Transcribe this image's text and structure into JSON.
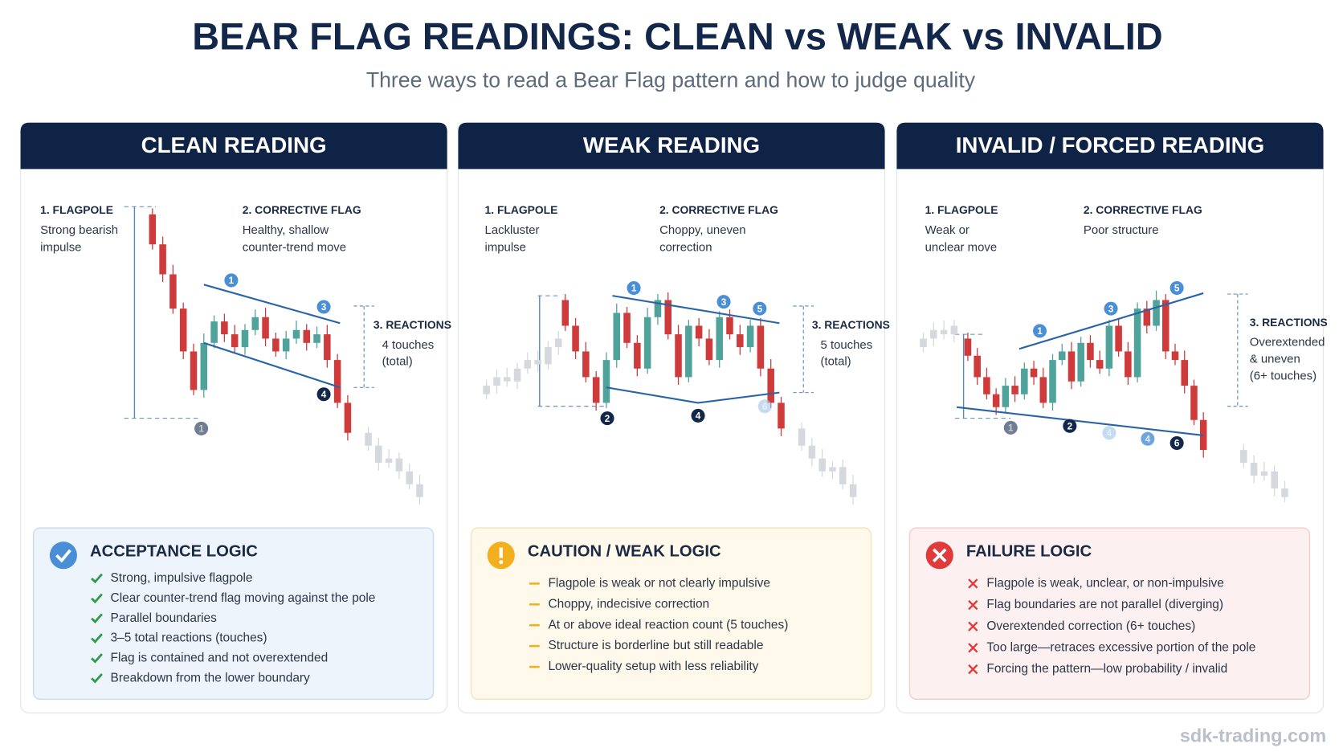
{
  "header": {
    "title": "BEAR FLAG READINGS: CLEAN vs WEAK vs INVALID",
    "subtitle": "Three ways to read a Bear Flag pattern and how to judge quality"
  },
  "panels": [
    {
      "heading": "CLEAN READING",
      "flagpole": {
        "label": "1. FLAGPOLE",
        "lines": [
          "Strong bearish",
          "impulse"
        ]
      },
      "flag": {
        "label": "2. CORRECTIVE FLAG",
        "lines": [
          "Healthy, shallow",
          "counter-trend move"
        ]
      },
      "reactions": {
        "label": "3. REACTIONS",
        "lines": [
          "4 touches",
          "(total)"
        ]
      },
      "markers": [
        "1",
        "3",
        "4",
        "1"
      ],
      "logic": {
        "title": "ACCEPTANCE LOGIC",
        "items": [
          "Strong, impulsive flagpole",
          "Clear counter-trend flag moving against the pole",
          "Parallel boundaries",
          "3–5 total reactions (touches)",
          "Flag is contained and not overextended",
          "Breakdown from the lower boundary"
        ]
      }
    },
    {
      "heading": "WEAK READING",
      "flagpole": {
        "label": "1. FLAGPOLE",
        "lines": [
          "Lackluster",
          "impulse"
        ]
      },
      "flag": {
        "label": "2. CORRECTIVE FLAG",
        "lines": [
          "Choppy, uneven",
          "correction"
        ]
      },
      "reactions": {
        "label": "3. REACTIONS",
        "lines": [
          "5 touches",
          "(total)"
        ]
      },
      "markers": [
        "1",
        "3",
        "5",
        "2",
        "4",
        "6"
      ],
      "logic": {
        "title": "CAUTION / WEAK LOGIC",
        "items": [
          "Flagpole is weak or not clearly impulsive",
          "Choppy, indecisive correction",
          "At or above ideal reaction count (5 touches)",
          "Structure is borderline but still readable",
          "Lower-quality setup with less reliability"
        ]
      }
    },
    {
      "heading": "INVALID / FORCED READING",
      "flagpole": {
        "label": "1. FLAGPOLE",
        "lines": [
          "Weak or",
          "unclear move"
        ]
      },
      "flag": {
        "label": "2. CORRECTIVE FLAG",
        "lines": [
          "Poor structure"
        ]
      },
      "reactions": {
        "label": "3. REACTIONS",
        "lines": [
          "Overextended",
          "& uneven",
          "(6+ touches)"
        ]
      },
      "markers": [
        "1",
        "3",
        "5",
        "2",
        "4",
        "4",
        "6",
        "1"
      ],
      "logic": {
        "title": "FAILURE LOGIC",
        "items": [
          "Flagpole is weak, unclear, or non-impulsive",
          "Flag boundaries are not parallel (diverging)",
          "Overextended correction (6+ touches)",
          "Too large—retraces excessive portion of the pole",
          "Forcing the pattern—low probability / invalid"
        ]
      }
    }
  ],
  "footer": "sdk-trading.com"
}
